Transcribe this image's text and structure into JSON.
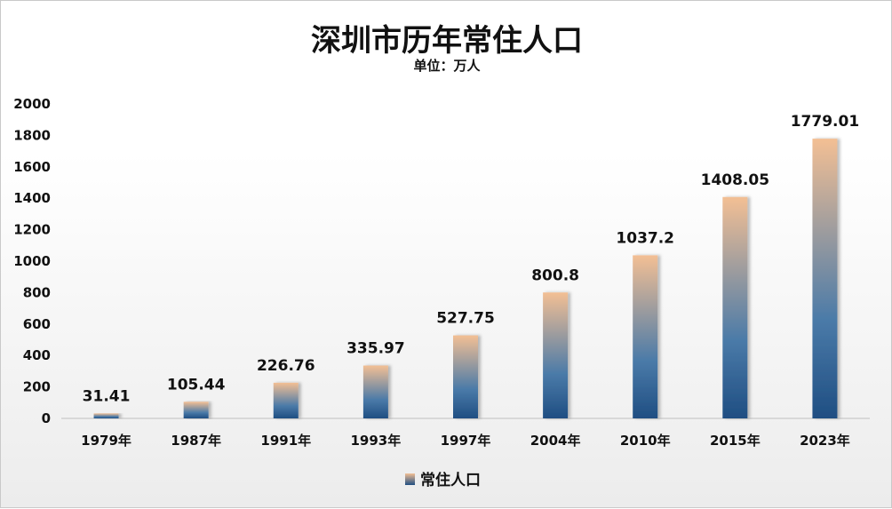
{
  "chart_data": {
    "type": "bar",
    "title": "深圳市历年常住人口",
    "subtitle": "单位：万人",
    "categories": [
      "1979年",
      "1987年",
      "1991年",
      "1993年",
      "1997年",
      "2004年",
      "2010年",
      "2015年",
      "2023年"
    ],
    "series": [
      {
        "name": "常住人口",
        "values": [
          31.41,
          105.44,
          226.76,
          335.97,
          527.75,
          800.8,
          1037.2,
          1408.05,
          1779.01
        ],
        "labels": [
          "31.41",
          "105.44",
          "226.76",
          "335.97",
          "527.75",
          "800.8",
          "1037.2",
          "1408.05",
          "1779.01"
        ]
      }
    ],
    "yticks": [
      "0",
      "200",
      "400",
      "600",
      "800",
      "1000",
      "1200",
      "1400",
      "1600",
      "1800",
      "2000"
    ],
    "ylim": [
      0,
      2000
    ],
    "grid": false,
    "legend_position": "bottom-center",
    "colors": {
      "bar_bottom": "#1f4e82",
      "bar_top": "#f3bf94"
    }
  }
}
